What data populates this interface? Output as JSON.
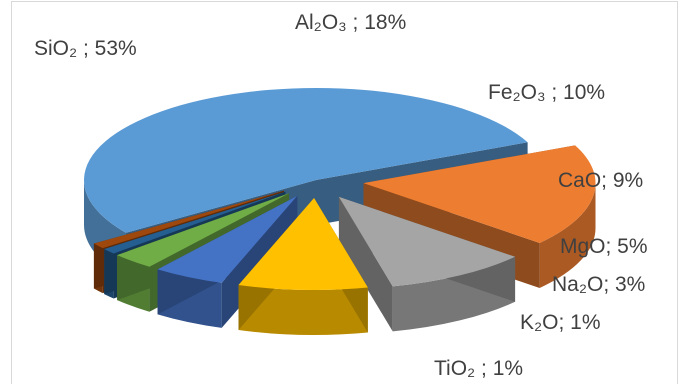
{
  "chart_data": {
    "type": "pie",
    "style": "3d-exploded",
    "legend": "none",
    "slices": [
      {
        "name": "SiO₂",
        "value": 53,
        "label": "SiO₂ ; 53%",
        "color": "#5b9bd5"
      },
      {
        "name": "Al₂O₃",
        "value": 18,
        "label": "Al₂O₃ ; 18%",
        "color": "#ed7d31"
      },
      {
        "name": "Fe₂O₃",
        "value": 10,
        "label": "Fe₂O₃ ; 10%",
        "color": "#a5a5a5"
      },
      {
        "name": "CaO",
        "value": 9,
        "label": "CaO; 9%",
        "color": "#ffc000"
      },
      {
        "name": "MgO",
        "value": 5,
        "label": "MgO; 5%",
        "color": "#4472c4"
      },
      {
        "name": "Na₂O",
        "value": 3,
        "label": "Na₂O; 3%",
        "color": "#70ad47"
      },
      {
        "name": "K₂O",
        "value": 1,
        "label": "K₂O; 1%",
        "color": "#255e91"
      },
      {
        "name": "TiO₂",
        "value": 1,
        "label": "TiO₂ ; 1%",
        "color": "#9e480e"
      }
    ]
  }
}
